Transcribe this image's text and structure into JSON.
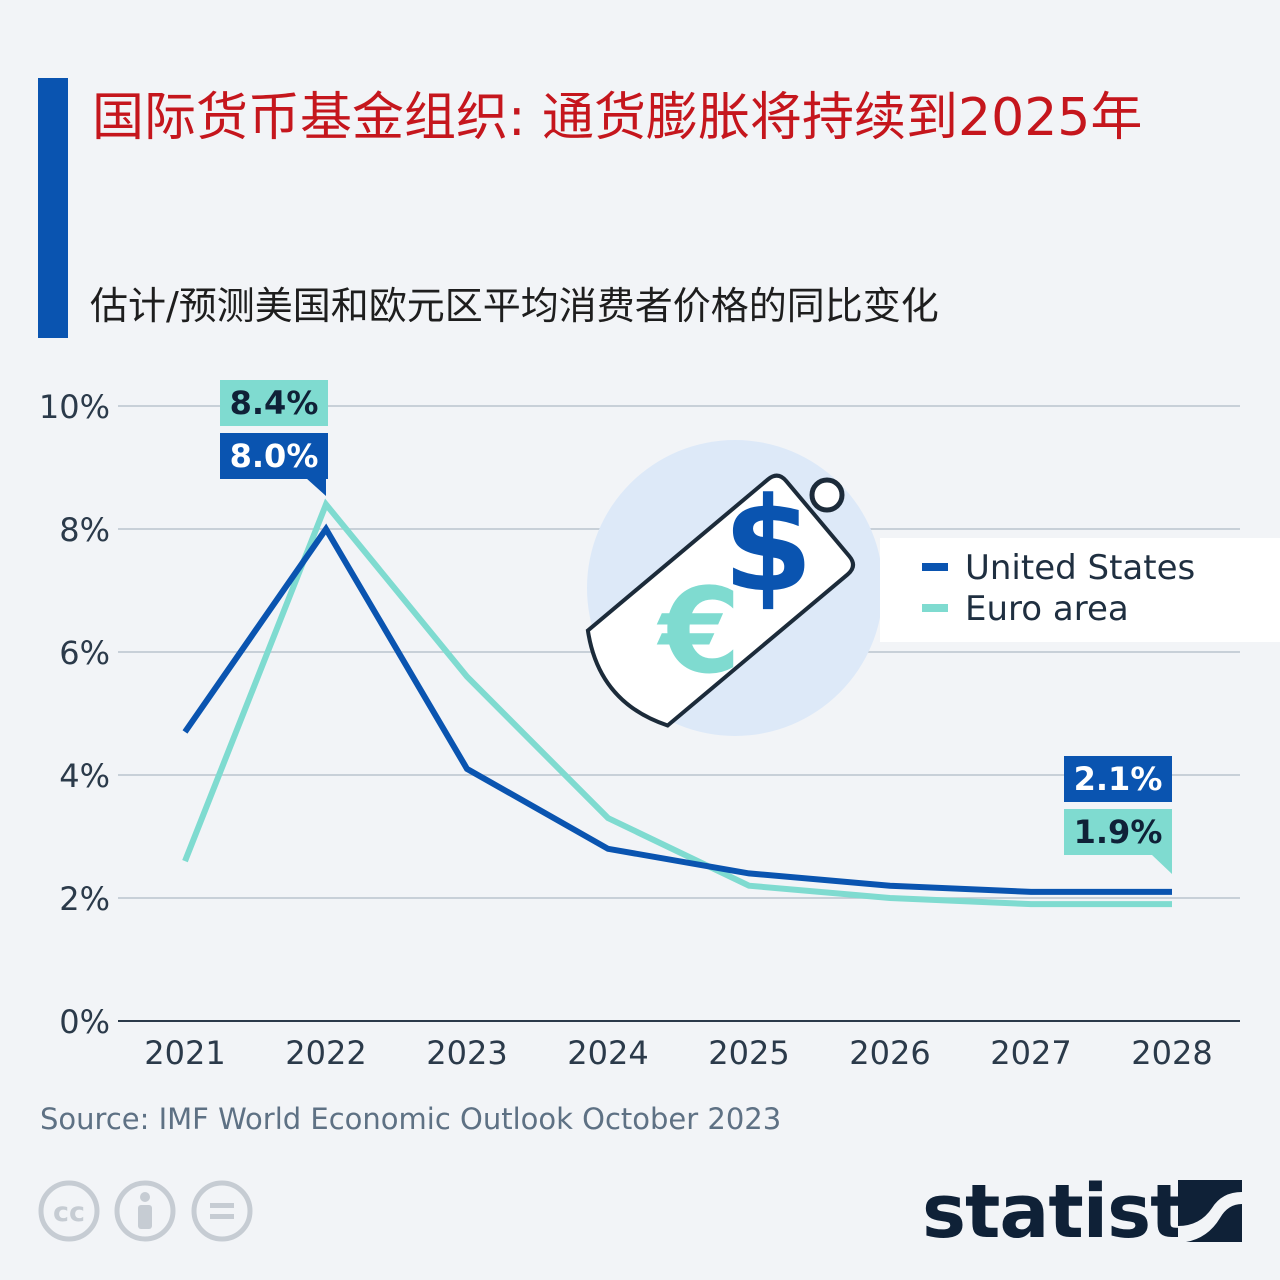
{
  "header": {
    "title": "国际货币基金组织: 通货膨胀将持续到2025年",
    "subtitle": "估计/预测美国和欧元区平均消费者价格的同比变化"
  },
  "chart_data": {
    "type": "line",
    "x": [
      "2021",
      "2022",
      "2023",
      "2024",
      "2025",
      "2026",
      "2027",
      "2028"
    ],
    "series": [
      {
        "name": "United States",
        "color": "#0a54b0",
        "values": [
          4.7,
          8.0,
          4.1,
          2.8,
          2.4,
          2.2,
          2.1,
          2.1
        ]
      },
      {
        "name": "Euro area",
        "color": "#7fdbd0",
        "values": [
          2.6,
          8.4,
          5.6,
          3.3,
          2.2,
          2.0,
          1.9,
          1.9
        ]
      }
    ],
    "ylim": [
      0,
      10
    ],
    "yticks": [
      0,
      2,
      4,
      6,
      8,
      10
    ],
    "ytick_labels": [
      "0%",
      "2%",
      "4%",
      "6%",
      "8%",
      "10%"
    ],
    "annotations": [
      {
        "text": "8.4%",
        "series": "Euro area",
        "x": "2022",
        "value": 8.4
      },
      {
        "text": "8.0%",
        "series": "United States",
        "x": "2022",
        "value": 8.0
      },
      {
        "text": "2.1%",
        "series": "United States",
        "x": "2028",
        "value": 2.1
      },
      {
        "text": "1.9%",
        "series": "Euro area",
        "x": "2028",
        "value": 1.9
      }
    ],
    "legend_position": "top-right",
    "grid": true
  },
  "footer": {
    "source": "Source: IMF World Economic Outlook October 2023",
    "brand": "statista"
  },
  "icons": [
    "price-tag-icon",
    "dollar-icon",
    "euro-icon",
    "cc-icon",
    "attribution-icon",
    "no-derivatives-icon",
    "statista-logo-icon"
  ]
}
